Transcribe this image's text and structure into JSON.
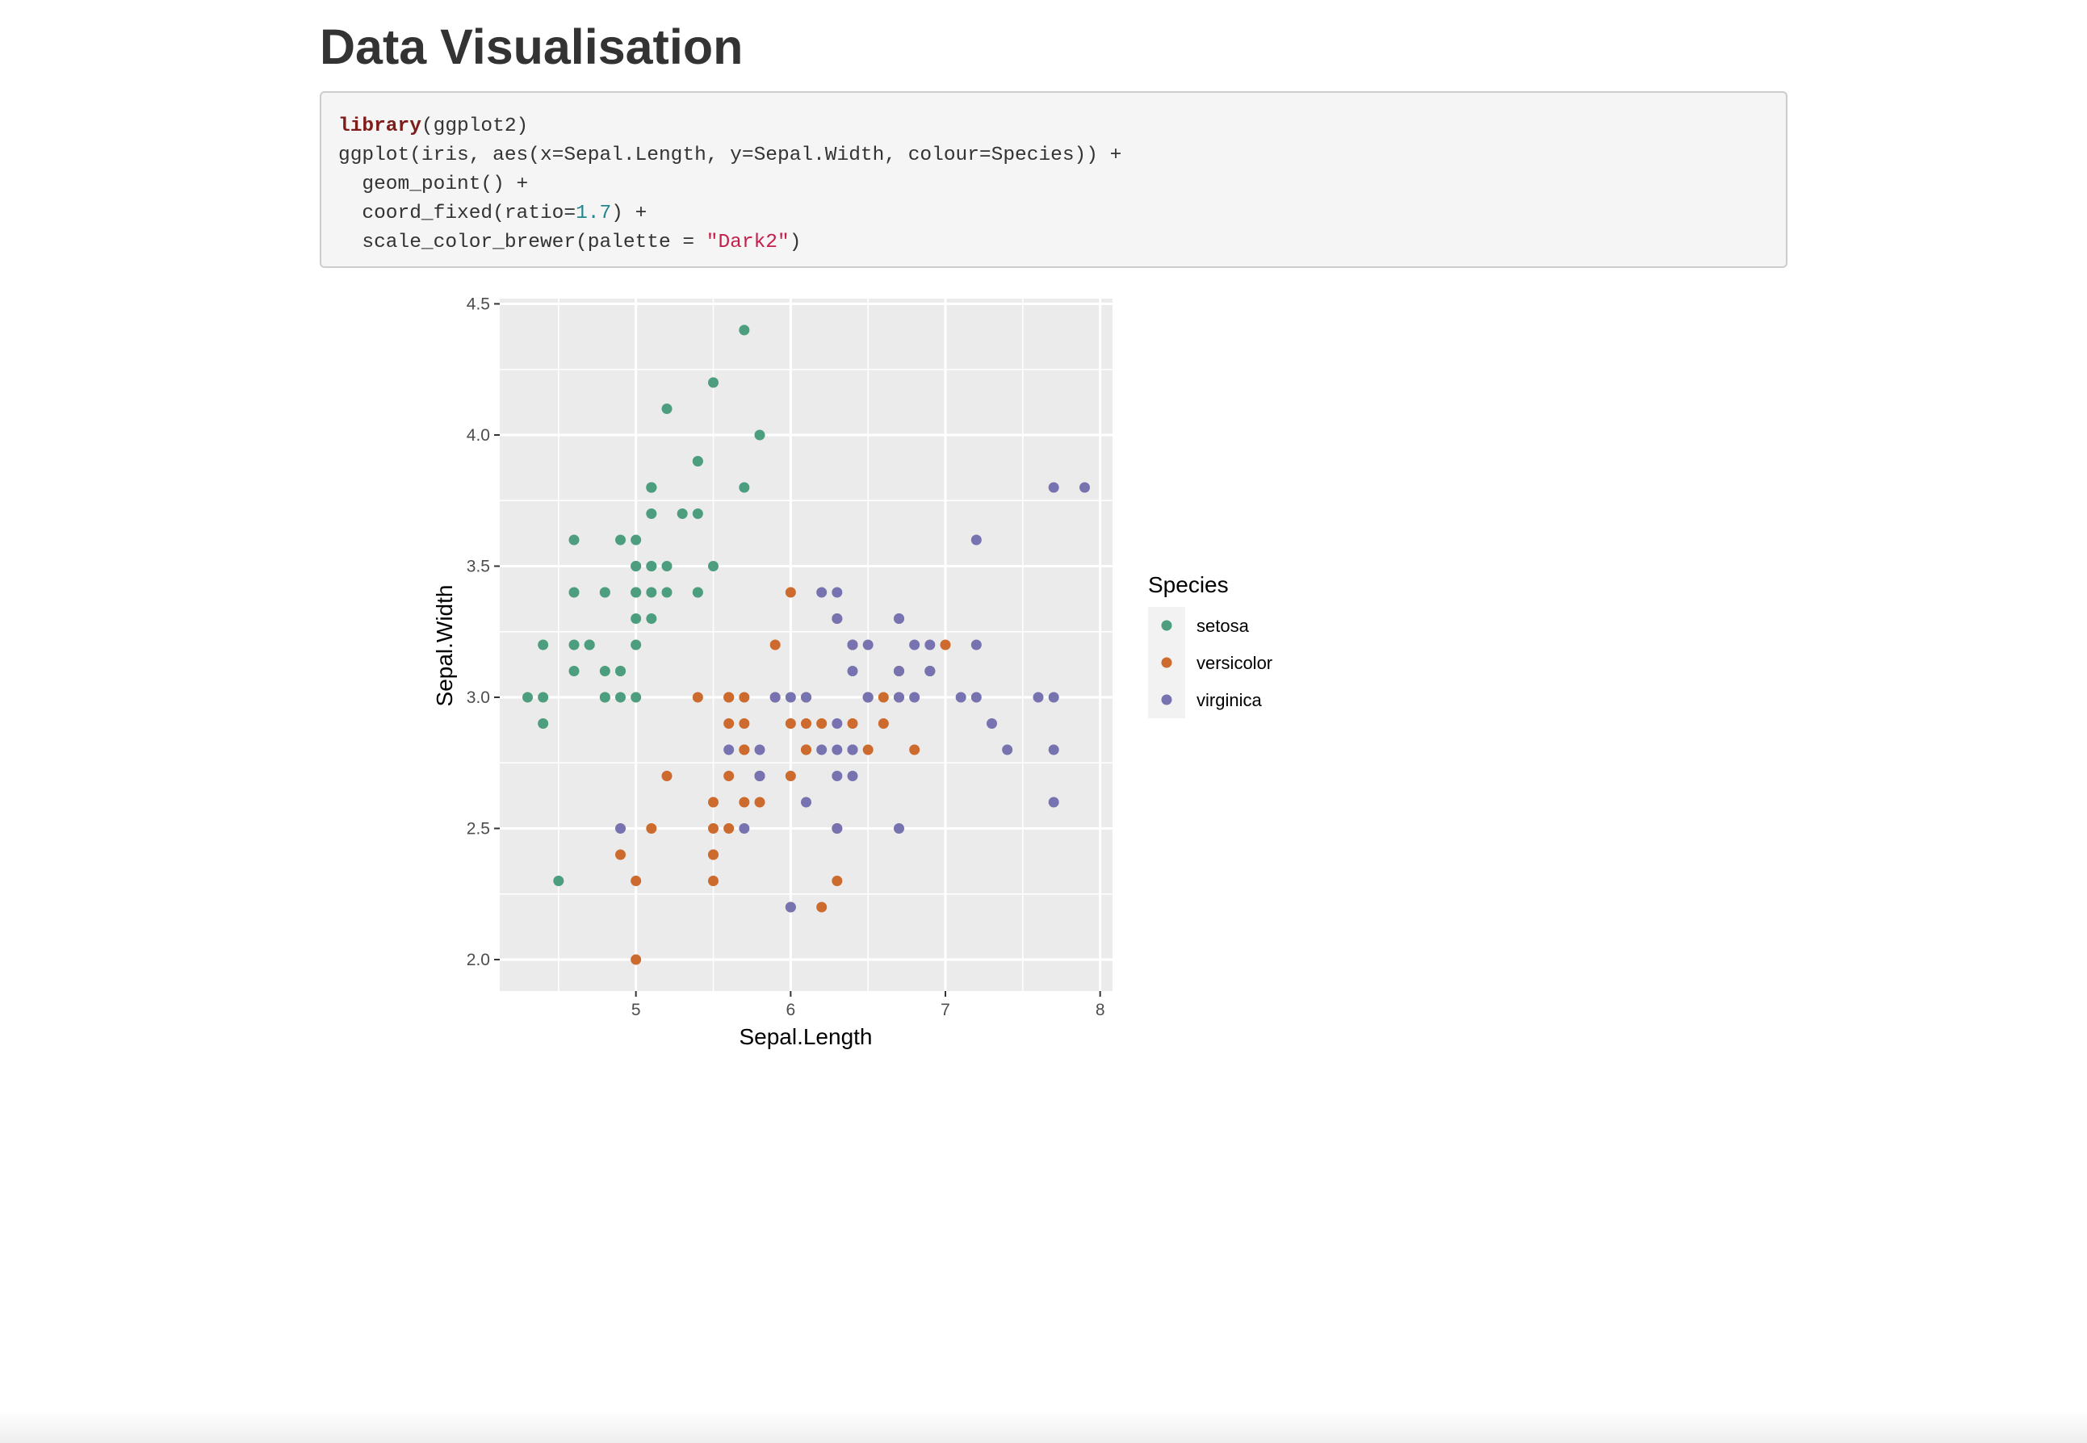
{
  "page": {
    "title": "Data Visualisation"
  },
  "code": {
    "lines": [
      [
        {
          "t": "library",
          "c": "kw"
        },
        {
          "t": "(ggplot2)",
          "c": ""
        }
      ],
      [
        {
          "t": "ggplot(iris, aes(x=Sepal.Length, y=Sepal.Width, colour=Species)) +",
          "c": ""
        }
      ],
      [
        {
          "t": "  geom_point() +",
          "c": ""
        }
      ],
      [
        {
          "t": "  coord_fixed(ratio=",
          "c": ""
        },
        {
          "t": "1.7",
          "c": "num"
        },
        {
          "t": ") +",
          "c": ""
        }
      ],
      [
        {
          "t": "  scale_color_brewer(palette = ",
          "c": ""
        },
        {
          "t": "\"Dark2\"",
          "c": "str"
        },
        {
          "t": ")",
          "c": ""
        }
      ]
    ]
  },
  "colors": {
    "panel_bg": "#ebebeb",
    "grid": "#ffffff",
    "setosa": "#4c9e7f",
    "versicolor": "#cd6a2d",
    "virginica": "#7772b0"
  },
  "chart_data": {
    "type": "scatter",
    "title": "",
    "xlabel": "Sepal.Length",
    "ylabel": "Sepal.Width",
    "xlim": [
      4.3,
      7.9
    ],
    "ylim": [
      2.0,
      4.4
    ],
    "x_ticks": [
      "5",
      "6",
      "7",
      "8"
    ],
    "y_ticks": [
      "2.0",
      "2.5",
      "3.0",
      "3.5",
      "4.0",
      "4.5"
    ],
    "grid": true,
    "legend": {
      "title": "Species",
      "position": "right",
      "entries": [
        "setosa",
        "versicolor",
        "virginica"
      ]
    },
    "series": [
      {
        "name": "setosa",
        "x": [
          5.1,
          4.9,
          4.7,
          4.6,
          5.0,
          5.4,
          4.6,
          5.0,
          4.4,
          4.9,
          5.4,
          4.8,
          4.8,
          4.3,
          5.8,
          5.7,
          5.4,
          5.1,
          5.7,
          5.1,
          5.4,
          5.1,
          4.6,
          5.1,
          4.8,
          5.0,
          5.0,
          5.2,
          5.2,
          4.7,
          4.8,
          5.4,
          5.2,
          5.5,
          4.9,
          5.0,
          5.5,
          4.9,
          4.4,
          5.1,
          5.0,
          4.5,
          4.4,
          5.0,
          5.1,
          4.8,
          5.1,
          4.6,
          5.3,
          5.0
        ],
        "y": [
          3.5,
          3.0,
          3.2,
          3.1,
          3.6,
          3.9,
          3.4,
          3.4,
          2.9,
          3.1,
          3.7,
          3.4,
          3.0,
          3.0,
          4.0,
          4.4,
          3.9,
          3.5,
          3.8,
          3.8,
          3.4,
          3.7,
          3.6,
          3.3,
          3.4,
          3.0,
          3.4,
          3.5,
          3.4,
          3.2,
          3.1,
          3.4,
          4.1,
          4.2,
          3.1,
          3.2,
          3.5,
          3.6,
          3.0,
          3.4,
          3.5,
          2.3,
          3.2,
          3.5,
          3.8,
          3.0,
          3.8,
          3.2,
          3.7,
          3.3
        ]
      },
      {
        "name": "versicolor",
        "x": [
          7.0,
          6.4,
          6.9,
          5.5,
          6.5,
          5.7,
          6.3,
          4.9,
          6.6,
          5.2,
          5.0,
          5.9,
          6.0,
          6.1,
          5.6,
          6.7,
          5.6,
          5.8,
          6.2,
          5.6,
          5.9,
          6.1,
          6.3,
          6.1,
          6.4,
          6.6,
          6.8,
          6.7,
          6.0,
          5.7,
          5.5,
          5.5,
          5.8,
          6.0,
          5.4,
          6.0,
          6.7,
          6.3,
          5.6,
          5.5,
          5.5,
          6.1,
          5.8,
          5.0,
          5.6,
          5.7,
          5.7,
          6.2,
          5.1,
          5.7
        ],
        "y": [
          3.2,
          3.2,
          3.1,
          2.3,
          2.8,
          2.8,
          3.3,
          2.4,
          2.9,
          2.7,
          2.0,
          3.0,
          2.2,
          2.9,
          2.9,
          3.1,
          3.0,
          2.7,
          2.2,
          2.5,
          3.2,
          2.8,
          2.5,
          2.8,
          2.9,
          3.0,
          2.8,
          3.0,
          2.9,
          2.6,
          2.4,
          2.4,
          2.7,
          2.7,
          3.0,
          3.4,
          3.1,
          2.3,
          3.0,
          2.5,
          2.6,
          3.0,
          2.6,
          2.3,
          2.7,
          3.0,
          2.9,
          2.9,
          2.5,
          2.8
        ]
      },
      {
        "name": "virginica",
        "x": [
          6.3,
          5.8,
          7.1,
          6.3,
          6.5,
          7.6,
          4.9,
          7.3,
          6.7,
          7.2,
          6.5,
          6.4,
          6.8,
          5.7,
          5.8,
          6.4,
          6.5,
          7.7,
          7.7,
          6.0,
          6.9,
          5.6,
          7.7,
          6.3,
          6.7,
          7.2,
          6.2,
          6.1,
          6.4,
          7.2,
          7.4,
          7.9,
          6.4,
          6.3,
          6.1,
          7.7,
          6.3,
          6.4,
          6.0,
          6.9,
          6.7,
          6.9,
          5.8,
          6.8,
          6.7,
          6.7,
          6.3,
          6.5,
          6.2,
          5.9
        ],
        "y": [
          3.3,
          2.7,
          3.0,
          2.9,
          3.0,
          3.0,
          2.5,
          2.9,
          2.5,
          3.6,
          3.2,
          2.7,
          3.0,
          2.5,
          2.8,
          3.2,
          3.0,
          3.8,
          2.6,
          2.2,
          3.2,
          2.8,
          2.8,
          2.7,
          3.3,
          3.2,
          2.8,
          3.0,
          2.8,
          3.0,
          2.8,
          3.8,
          2.8,
          2.8,
          2.6,
          3.0,
          3.4,
          3.1,
          3.0,
          3.1,
          3.1,
          3.1,
          2.7,
          3.2,
          3.3,
          3.0,
          2.5,
          3.0,
          3.4,
          3.0
        ]
      }
    ]
  }
}
